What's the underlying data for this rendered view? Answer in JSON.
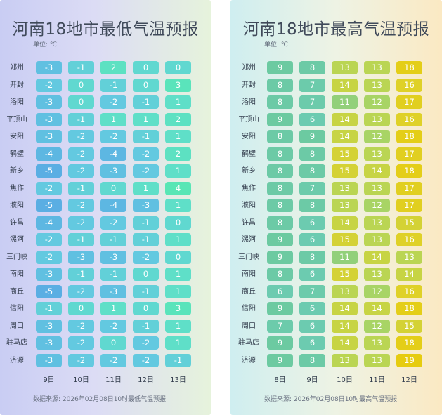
{
  "chart_data": [
    {
      "type": "table",
      "title": "河南18地市最低气温预报",
      "unit": "单位: ℃",
      "source": "数据来源: 2026年02月08日10时最低气温预报",
      "days": [
        "9日",
        "10日",
        "11日",
        "12日",
        "13日"
      ],
      "cities": [
        "郑州",
        "开封",
        "洛阳",
        "平顶山",
        "安阳",
        "鹤壁",
        "新乡",
        "焦作",
        "濮阳",
        "许昌",
        "漯河",
        "三门峡",
        "南阳",
        "商丘",
        "信阳",
        "周口",
        "驻马店",
        "济源"
      ],
      "values": [
        [
          -3,
          -1,
          2,
          0,
          0
        ],
        [
          -2,
          0,
          -1,
          0,
          3
        ],
        [
          -3,
          0,
          -2,
          -1,
          1
        ],
        [
          -3,
          -1,
          1,
          1,
          2
        ],
        [
          -3,
          -2,
          -2,
          -1,
          1
        ],
        [
          -4,
          -2,
          -4,
          -2,
          2
        ],
        [
          -5,
          -2,
          -3,
          -2,
          1
        ],
        [
          -2,
          -1,
          0,
          1,
          4
        ],
        [
          -5,
          -2,
          -4,
          -3,
          1
        ],
        [
          -4,
          -2,
          -2,
          -1,
          0
        ],
        [
          -2,
          -1,
          -1,
          -1,
          1
        ],
        [
          -2,
          -3,
          -3,
          -2,
          0
        ],
        [
          -3,
          -1,
          -1,
          0,
          1
        ],
        [
          -5,
          -2,
          -3,
          -1,
          1
        ],
        [
          -1,
          0,
          1,
          0,
          3
        ],
        [
          -3,
          -2,
          -2,
          -1,
          1
        ],
        [
          -3,
          -2,
          0,
          -2,
          1
        ],
        [
          -3,
          -2,
          -2,
          -2,
          -1
        ]
      ]
    },
    {
      "type": "table",
      "title": "河南18地市最高气温预报",
      "unit": "单位: ℃",
      "source": "数据来源: 2026年02月08日10时最高气温预报",
      "days": [
        "8日",
        "9日",
        "10日",
        "11日",
        "12日"
      ],
      "cities": [
        "郑州",
        "开封",
        "洛阳",
        "平顶山",
        "安阳",
        "鹤壁",
        "新乡",
        "焦作",
        "濮阳",
        "许昌",
        "漯河",
        "三门峡",
        "南阳",
        "商丘",
        "信阳",
        "周口",
        "驻马店",
        "济源"
      ],
      "values": [
        [
          9,
          8,
          13,
          13,
          18
        ],
        [
          8,
          7,
          14,
          13,
          16
        ],
        [
          8,
          7,
          11,
          12,
          17
        ],
        [
          9,
          6,
          14,
          13,
          16
        ],
        [
          8,
          9,
          14,
          12,
          18
        ],
        [
          8,
          8,
          15,
          13,
          17
        ],
        [
          8,
          8,
          15,
          14,
          18
        ],
        [
          8,
          7,
          13,
          13,
          17
        ],
        [
          8,
          8,
          13,
          12,
          17
        ],
        [
          8,
          6,
          14,
          13,
          15
        ],
        [
          9,
          6,
          15,
          13,
          16
        ],
        [
          9,
          8,
          11,
          14,
          13
        ],
        [
          8,
          6,
          15,
          13,
          14
        ],
        [
          6,
          7,
          13,
          12,
          16
        ],
        [
          9,
          6,
          14,
          14,
          18
        ],
        [
          7,
          6,
          14,
          12,
          15
        ],
        [
          9,
          6,
          14,
          13,
          18
        ],
        [
          9,
          8,
          13,
          13,
          19
        ]
      ]
    }
  ]
}
